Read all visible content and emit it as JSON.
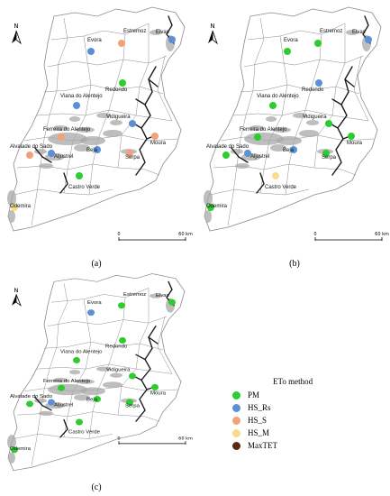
{
  "colors": {
    "PM": "#2ecc2e",
    "HS_Rs": "#5b8fd6",
    "HS_S": "#f0a27a",
    "HS_M": "#f7dc8a",
    "MaxTET": "#5a2a10",
    "river": "#1a1a1a",
    "urban": "#a8a8a8",
    "boundary": "#8a8a8a"
  },
  "panels": [
    {
      "label": "(a)",
      "north": "N",
      "scalebar": {
        "start": "0",
        "end": "60 km"
      },
      "stations": [
        {
          "name": "Estremoz",
          "method": "HS_S"
        },
        {
          "name": "Elvas",
          "method": "HS_Rs"
        },
        {
          "name": "Evora",
          "method": "HS_Rs"
        },
        {
          "name": "Redondo",
          "method": "PM"
        },
        {
          "name": "Viana do Alentejo",
          "method": "HS_Rs"
        },
        {
          "name": "Vidigueira",
          "method": "HS_Rs"
        },
        {
          "name": "Ferreira do Alentejo",
          "method": "HS_S"
        },
        {
          "name": "Alvalade do Sado",
          "method": "HS_S"
        },
        {
          "name": "Aljustrel",
          "method": "HS_Rs"
        },
        {
          "name": "Beja",
          "method": "HS_Rs"
        },
        {
          "name": "Serpa",
          "method": "HS_S"
        },
        {
          "name": "Moura",
          "method": "HS_S"
        },
        {
          "name": "Castro Verde",
          "method": "PM"
        },
        {
          "name": "Odemira",
          "method": "HS_M"
        }
      ]
    },
    {
      "label": "(b)",
      "north": "N",
      "scalebar": {
        "start": "0",
        "end": "60 km"
      },
      "stations": [
        {
          "name": "Estremoz",
          "method": "PM"
        },
        {
          "name": "Elvas",
          "method": "HS_Rs"
        },
        {
          "name": "Evora",
          "method": "PM"
        },
        {
          "name": "Redondo",
          "method": "HS_Rs"
        },
        {
          "name": "Viana do Alentejo",
          "method": "PM"
        },
        {
          "name": "Vidigueira",
          "method": "PM"
        },
        {
          "name": "Ferreira do Alentejo",
          "method": "PM"
        },
        {
          "name": "Alvalade do Sado",
          "method": "PM"
        },
        {
          "name": "Aljustrel",
          "method": "HS_Rs"
        },
        {
          "name": "Beja",
          "method": "HS_Rs"
        },
        {
          "name": "Serpa",
          "method": "PM"
        },
        {
          "name": "Moura",
          "method": "PM"
        },
        {
          "name": "Castro Verde",
          "method": "HS_M"
        },
        {
          "name": "Odemira",
          "method": "PM"
        }
      ]
    },
    {
      "label": "(c)",
      "north": "N",
      "scalebar": {
        "start": "0",
        "end": "60 km"
      },
      "stations": [
        {
          "name": "Estremoz",
          "method": "PM"
        },
        {
          "name": "Elvas",
          "method": "PM"
        },
        {
          "name": "Evora",
          "method": "HS_Rs"
        },
        {
          "name": "Redondo",
          "method": "PM"
        },
        {
          "name": "Viana do Alentejo",
          "method": "PM"
        },
        {
          "name": "Vidigueira",
          "method": "PM"
        },
        {
          "name": "Ferreira do Alentejo",
          "method": "PM"
        },
        {
          "name": "Alvalade do Sado",
          "method": "PM"
        },
        {
          "name": "Aljustrel",
          "method": "HS_Rs"
        },
        {
          "name": "Beja",
          "method": "PM"
        },
        {
          "name": "Serpa",
          "method": "PM"
        },
        {
          "name": "Moura",
          "method": "PM"
        },
        {
          "name": "Castro Verde",
          "method": "PM"
        },
        {
          "name": "Odemira",
          "method": "PM"
        }
      ]
    }
  ],
  "legend": {
    "title": "ETo method",
    "items": [
      {
        "label": "PM",
        "method": "PM"
      },
      {
        "label": "HS_Rs",
        "method": "HS_Rs"
      },
      {
        "label": "HS_S",
        "method": "HS_S"
      },
      {
        "label": "HS_M",
        "method": "HS_M"
      },
      {
        "label": "MaxTET",
        "method": "MaxTET"
      }
    ]
  }
}
